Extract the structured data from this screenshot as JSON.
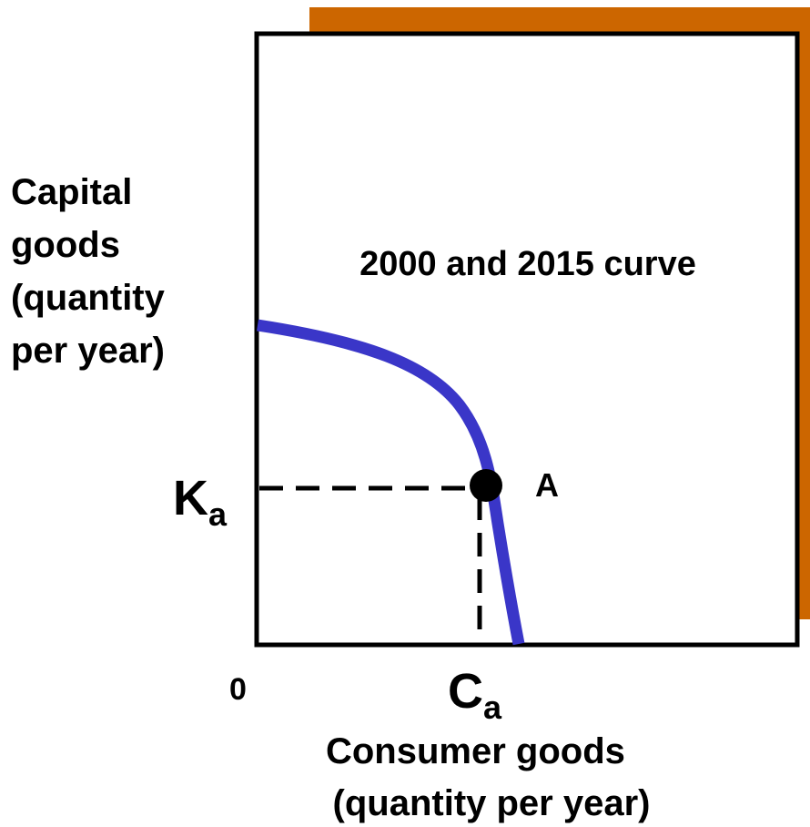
{
  "diagram": {
    "y_axis_label": [
      "Capital",
      "goods",
      "(quantity",
      "per year)"
    ],
    "curve_label": "2000 and 2015 curve",
    "k_label": {
      "main": "K",
      "sub": "a"
    },
    "c_label": {
      "main": "C",
      "sub": "a"
    },
    "point_label": "A",
    "origin_label": "0",
    "x_axis_label": [
      "Consumer goods",
      "(quantity per year)"
    ]
  }
}
